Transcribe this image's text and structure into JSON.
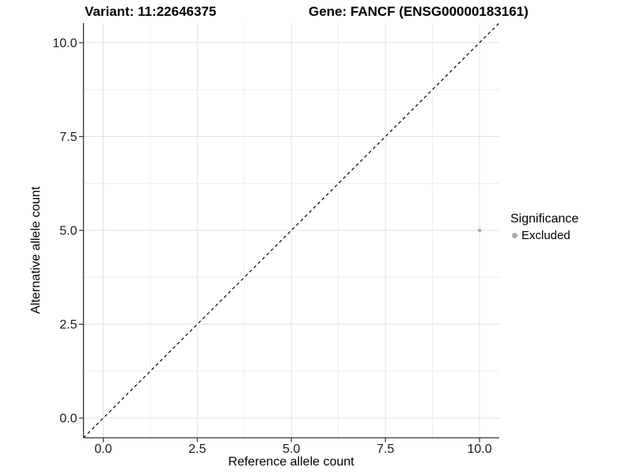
{
  "chart_data": {
    "type": "scatter",
    "title_left": "Variant: 11:22646375",
    "title_right": "Gene: FANCF (ENSG00000183161)",
    "xlabel": "Reference allele count",
    "ylabel": "Alternative allele count",
    "xlim": [
      -0.525,
      10.525
    ],
    "ylim": [
      -0.525,
      10.525
    ],
    "x_ticks": [
      0,
      2.5,
      5,
      7.5,
      10
    ],
    "y_ticks": [
      0,
      2.5,
      5,
      7.5,
      10
    ],
    "x_tick_labels": [
      "0.0",
      "2.5",
      "5.0",
      "7.5",
      "10.0"
    ],
    "y_tick_labels": [
      "0.0",
      "2.5",
      "5.0",
      "7.5",
      "10.0"
    ],
    "x_minor_ticks": [
      1.25,
      3.75,
      6.25,
      8.75
    ],
    "y_minor_ticks": [
      1.25,
      3.75,
      6.25,
      8.75
    ],
    "grid": "major+minor",
    "legend_position": "right",
    "reference_line": {
      "kind": "identity",
      "style": "dashed",
      "color": "#000000"
    },
    "series": [
      {
        "name": "Excluded",
        "color": "#ababab",
        "points": [
          {
            "x": 10,
            "y": 5
          }
        ]
      }
    ],
    "legend": {
      "title": "Significance",
      "entries": [
        {
          "label": "Excluded",
          "color": "#ababab"
        }
      ]
    },
    "colors": {
      "background": "#ffffff",
      "grid_major": "#e2e2e2",
      "grid_minor": "#ececec",
      "axis_line": "#333333",
      "tick": "#333333",
      "tick_label": "#1a1a1a",
      "title": "#000000"
    }
  }
}
